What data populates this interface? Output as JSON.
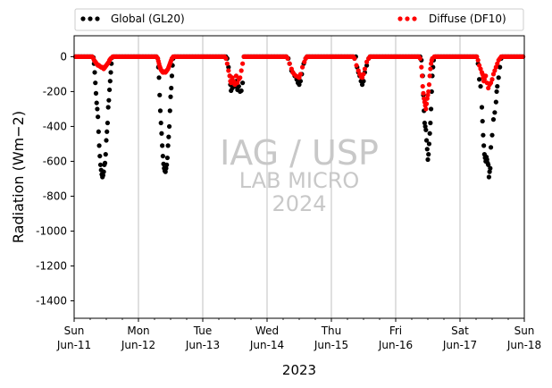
{
  "chart_data": {
    "type": "scatter",
    "xlabel": "2023",
    "ylabel": "Radiation (Wm−2)",
    "ylim": [
      -1500,
      120
    ],
    "yticks": [
      0,
      -200,
      -400,
      -600,
      -800,
      -1000,
      -1200,
      -1400
    ],
    "xlim": [
      0,
      7
    ],
    "xticks": [
      {
        "x": 0,
        "day": "Sun",
        "date": "Jun-11"
      },
      {
        "x": 1,
        "day": "Mon",
        "date": "Jun-12"
      },
      {
        "x": 2,
        "day": "Tue",
        "date": "Jun-13"
      },
      {
        "x": 3,
        "day": "Wed",
        "date": "Jun-14"
      },
      {
        "x": 4,
        "day": "Thu",
        "date": "Jun-15"
      },
      {
        "x": 5,
        "day": "Fri",
        "date": "Jun-16"
      },
      {
        "x": 6,
        "day": "Sat",
        "date": "Jun-17"
      },
      {
        "x": 7,
        "day": "Sun",
        "date": "Jun-18"
      }
    ],
    "grid": "x-major",
    "legend_placement": "top-outside",
    "watermark": [
      "IAG / USP",
      "LAB MICRO",
      "2024"
    ],
    "series": [
      {
        "name": "Global (GL20)",
        "color": "#000000",
        "points": [
          [
            0.3,
            -5
          ],
          [
            0.31,
            -40
          ],
          [
            0.32,
            -90
          ],
          [
            0.33,
            -150
          ],
          [
            0.34,
            -210
          ],
          [
            0.35,
            -265
          ],
          [
            0.36,
            -300
          ],
          [
            0.37,
            -345
          ],
          [
            0.38,
            -430
          ],
          [
            0.39,
            -510
          ],
          [
            0.4,
            -570
          ],
          [
            0.41,
            -620
          ],
          [
            0.42,
            -650
          ],
          [
            0.43,
            -675
          ],
          [
            0.44,
            -690
          ],
          [
            0.45,
            -680
          ],
          [
            0.46,
            -660
          ],
          [
            0.47,
            -620
          ],
          [
            0.48,
            -610
          ],
          [
            0.49,
            -560
          ],
          [
            0.5,
            -480
          ],
          [
            0.51,
            -430
          ],
          [
            0.52,
            -380
          ],
          [
            0.53,
            -290
          ],
          [
            0.54,
            -250
          ],
          [
            0.55,
            -190
          ],
          [
            0.56,
            -140
          ],
          [
            0.57,
            -90
          ],
          [
            0.58,
            -40
          ],
          [
            0.59,
            -5
          ],
          [
            1.3,
            -10
          ],
          [
            1.31,
            -60
          ],
          [
            1.32,
            -120
          ],
          [
            1.33,
            -220
          ],
          [
            1.34,
            -310
          ],
          [
            1.35,
            -380
          ],
          [
            1.36,
            -440
          ],
          [
            1.37,
            -510
          ],
          [
            1.38,
            -570
          ],
          [
            1.39,
            -615
          ],
          [
            1.4,
            -640
          ],
          [
            1.41,
            -655
          ],
          [
            1.42,
            -660
          ],
          [
            1.43,
            -640
          ],
          [
            1.44,
            -620
          ],
          [
            1.45,
            -580
          ],
          [
            1.46,
            -510
          ],
          [
            1.47,
            -460
          ],
          [
            1.48,
            -400
          ],
          [
            1.49,
            -310
          ],
          [
            1.5,
            -230
          ],
          [
            1.51,
            -180
          ],
          [
            1.52,
            -110
          ],
          [
            1.53,
            -50
          ],
          [
            1.54,
            -10
          ],
          [
            2.38,
            -10
          ],
          [
            2.4,
            -60
          ],
          [
            2.42,
            -110
          ],
          [
            2.43,
            -160
          ],
          [
            2.44,
            -195
          ],
          [
            2.46,
            -180
          ],
          [
            2.48,
            -150
          ],
          [
            2.5,
            -170
          ],
          [
            2.52,
            -140
          ],
          [
            2.54,
            -190
          ],
          [
            2.56,
            -170
          ],
          [
            2.58,
            -200
          ],
          [
            2.6,
            -195
          ],
          [
            2.62,
            -150
          ],
          [
            3.33,
            -10
          ],
          [
            3.35,
            -40
          ],
          [
            3.38,
            -80
          ],
          [
            3.4,
            -90
          ],
          [
            3.43,
            -110
          ],
          [
            3.46,
            -130
          ],
          [
            3.48,
            -150
          ],
          [
            3.5,
            -160
          ],
          [
            3.52,
            -140
          ],
          [
            3.54,
            -100
          ],
          [
            3.57,
            -40
          ],
          [
            3.6,
            -10
          ],
          [
            4.36,
            -10
          ],
          [
            4.4,
            -60
          ],
          [
            4.42,
            -90
          ],
          [
            4.44,
            -110
          ],
          [
            4.46,
            -140
          ],
          [
            4.48,
            -160
          ],
          [
            4.5,
            -140
          ],
          [
            4.52,
            -90
          ],
          [
            4.55,
            -50
          ],
          [
            4.58,
            -10
          ],
          [
            5.4,
            -20
          ],
          [
            5.42,
            -110
          ],
          [
            5.43,
            -220
          ],
          [
            5.44,
            -310
          ],
          [
            5.45,
            -380
          ],
          [
            5.46,
            -400
          ],
          [
            5.47,
            -420
          ],
          [
            5.48,
            -480
          ],
          [
            5.49,
            -530
          ],
          [
            5.5,
            -590
          ],
          [
            5.51,
            -560
          ],
          [
            5.52,
            -500
          ],
          [
            5.53,
            -440
          ],
          [
            5.54,
            -380
          ],
          [
            5.55,
            -300
          ],
          [
            5.56,
            -200
          ],
          [
            5.57,
            -110
          ],
          [
            5.58,
            -60
          ],
          [
            5.59,
            -20
          ],
          [
            6.28,
            -40
          ],
          [
            6.3,
            -130
          ],
          [
            6.32,
            -170
          ],
          [
            6.34,
            -290
          ],
          [
            6.35,
            -370
          ],
          [
            6.36,
            -450
          ],
          [
            6.37,
            -510
          ],
          [
            6.38,
            -560
          ],
          [
            6.39,
            -580
          ],
          [
            6.4,
            -600
          ],
          [
            6.41,
            -575
          ],
          [
            6.42,
            -590
          ],
          [
            6.43,
            -610
          ],
          [
            6.44,
            -620
          ],
          [
            6.45,
            -690
          ],
          [
            6.46,
            -660
          ],
          [
            6.47,
            -640
          ],
          [
            6.48,
            -520
          ],
          [
            6.5,
            -450
          ],
          [
            6.52,
            -360
          ],
          [
            6.54,
            -320
          ],
          [
            6.56,
            -260
          ],
          [
            6.57,
            -200
          ],
          [
            6.58,
            -170
          ],
          [
            6.6,
            -120
          ],
          [
            6.62,
            -60
          ],
          [
            6.64,
            -10
          ]
        ]
      },
      {
        "name": "Diffuse (DF10)",
        "color": "#ff0000",
        "points": [
          [
            0.3,
            -10
          ],
          [
            0.31,
            -20
          ],
          [
            0.32,
            -25
          ],
          [
            0.33,
            -30
          ],
          [
            0.34,
            -35
          ],
          [
            0.35,
            -40
          ],
          [
            0.36,
            -45
          ],
          [
            0.37,
            -50
          ],
          [
            0.38,
            -48
          ],
          [
            0.39,
            -52
          ],
          [
            0.4,
            -55
          ],
          [
            0.41,
            -58
          ],
          [
            0.42,
            -60
          ],
          [
            0.43,
            -62
          ],
          [
            0.44,
            -60
          ],
          [
            0.45,
            -65
          ],
          [
            0.46,
            -70
          ],
          [
            0.47,
            -65
          ],
          [
            0.48,
            -60
          ],
          [
            0.49,
            -55
          ],
          [
            0.5,
            -50
          ],
          [
            0.51,
            -45
          ],
          [
            0.52,
            -40
          ],
          [
            0.53,
            -35
          ],
          [
            0.54,
            -30
          ],
          [
            0.55,
            -20
          ],
          [
            0.56,
            -15
          ],
          [
            0.57,
            -10
          ],
          [
            1.3,
            -10
          ],
          [
            1.31,
            -25
          ],
          [
            1.32,
            -40
          ],
          [
            1.33,
            -55
          ],
          [
            1.34,
            -65
          ],
          [
            1.35,
            -75
          ],
          [
            1.36,
            -80
          ],
          [
            1.37,
            -85
          ],
          [
            1.38,
            -90
          ],
          [
            1.39,
            -90
          ],
          [
            1.4,
            -85
          ],
          [
            1.41,
            -88
          ],
          [
            1.42,
            -90
          ],
          [
            1.43,
            -85
          ],
          [
            1.44,
            -80
          ],
          [
            1.45,
            -75
          ],
          [
            1.46,
            -70
          ],
          [
            1.47,
            -60
          ],
          [
            1.48,
            -50
          ],
          [
            1.49,
            -40
          ],
          [
            1.5,
            -30
          ],
          [
            1.51,
            -20
          ],
          [
            1.52,
            -10
          ],
          [
            2.36,
            -10
          ],
          [
            2.38,
            -40
          ],
          [
            2.4,
            -80
          ],
          [
            2.42,
            -110
          ],
          [
            2.43,
            -140
          ],
          [
            2.44,
            -150
          ],
          [
            2.46,
            -120
          ],
          [
            2.48,
            -140
          ],
          [
            2.5,
            -160
          ],
          [
            2.52,
            -110
          ],
          [
            2.54,
            -150
          ],
          [
            2.56,
            -130
          ],
          [
            2.58,
            -120
          ],
          [
            2.6,
            -80
          ],
          [
            2.62,
            -40
          ],
          [
            3.32,
            -10
          ],
          [
            3.35,
            -40
          ],
          [
            3.38,
            -70
          ],
          [
            3.4,
            -90
          ],
          [
            3.42,
            -100
          ],
          [
            3.45,
            -110
          ],
          [
            3.48,
            -115
          ],
          [
            3.5,
            -120
          ],
          [
            3.52,
            -100
          ],
          [
            3.55,
            -60
          ],
          [
            3.58,
            -30
          ],
          [
            3.6,
            -10
          ],
          [
            4.36,
            -10
          ],
          [
            4.39,
            -50
          ],
          [
            4.42,
            -80
          ],
          [
            4.44,
            -100
          ],
          [
            4.46,
            -115
          ],
          [
            4.48,
            -120
          ],
          [
            4.5,
            -100
          ],
          [
            4.52,
            -70
          ],
          [
            4.55,
            -30
          ],
          [
            4.58,
            -10
          ],
          [
            5.38,
            -10
          ],
          [
            5.4,
            -60
          ],
          [
            5.41,
            -110
          ],
          [
            5.42,
            -170
          ],
          [
            5.43,
            -210
          ],
          [
            5.44,
            -240
          ],
          [
            5.45,
            -260
          ],
          [
            5.46,
            -280
          ],
          [
            5.47,
            -300
          ],
          [
            5.48,
            -270
          ],
          [
            5.49,
            -240
          ],
          [
            5.5,
            -220
          ],
          [
            5.51,
            -200
          ],
          [
            5.52,
            -160
          ],
          [
            5.53,
            -110
          ],
          [
            5.54,
            -70
          ],
          [
            5.55,
            -40
          ],
          [
            5.56,
            -20
          ],
          [
            5.57,
            -10
          ],
          [
            6.28,
            -20
          ],
          [
            6.3,
            -50
          ],
          [
            6.32,
            -70
          ],
          [
            6.34,
            -90
          ],
          [
            6.35,
            -100
          ],
          [
            6.36,
            -120
          ],
          [
            6.37,
            -140
          ],
          [
            6.38,
            -130
          ],
          [
            6.4,
            -110
          ],
          [
            6.42,
            -150
          ],
          [
            6.44,
            -180
          ],
          [
            6.46,
            -160
          ],
          [
            6.48,
            -150
          ],
          [
            6.5,
            -130
          ],
          [
            6.52,
            -100
          ],
          [
            6.54,
            -80
          ],
          [
            6.56,
            -60
          ],
          [
            6.58,
            -40
          ],
          [
            6.6,
            -20
          ],
          [
            6.62,
            -10
          ]
        ]
      }
    ]
  }
}
